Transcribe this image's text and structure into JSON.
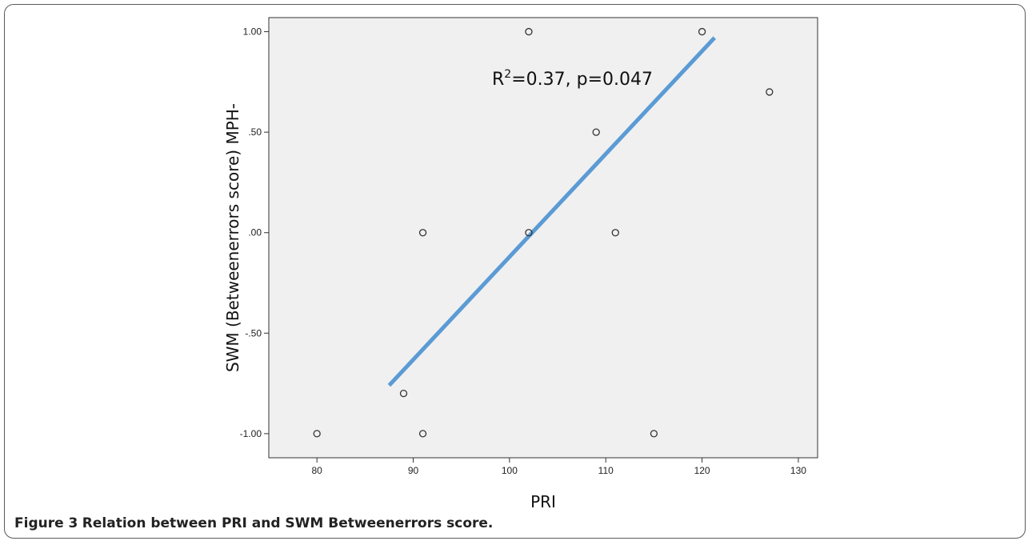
{
  "figure": {
    "caption_label": "Figure 3",
    "caption_text": "Relation between PRI and SWM Betweenerrors score."
  },
  "chart_data": {
    "type": "scatter",
    "xlabel": "PRI",
    "ylabel": "SWM (Betweenerrors score) MPH-",
    "xlim": [
      75,
      132
    ],
    "ylim": [
      -1.12,
      1.07
    ],
    "x_ticks": [
      80,
      90,
      100,
      110,
      120,
      130
    ],
    "y_ticks": [
      1.0,
      0.5,
      0.0,
      -0.5,
      -1.0
    ],
    "x_tick_labels": [
      "80",
      "90",
      "100",
      "110",
      "120",
      "130"
    ],
    "y_tick_labels": [
      "1.00",
      ".50",
      ".00",
      "-.50",
      "-1.00"
    ],
    "points": [
      {
        "x": 80,
        "y": -1.0
      },
      {
        "x": 89,
        "y": -0.8
      },
      {
        "x": 91,
        "y": 0.0
      },
      {
        "x": 91,
        "y": -1.0
      },
      {
        "x": 102,
        "y": 1.0
      },
      {
        "x": 102,
        "y": 0.0
      },
      {
        "x": 109,
        "y": 0.5
      },
      {
        "x": 111,
        "y": 0.0
      },
      {
        "x": 115,
        "y": -1.0
      },
      {
        "x": 120,
        "y": 1.0
      },
      {
        "x": 127,
        "y": 0.7
      }
    ],
    "fit_line": {
      "x1": 87.5,
      "y1": -0.76,
      "x2": 121.3,
      "y2": 0.97
    },
    "annotation": {
      "prefix": "R",
      "sup": "2",
      "text": "=0.37, p=0.047"
    },
    "grid": false,
    "colors": {
      "plot_background": "#f0f0f0",
      "fit_line": "#5b9bd5",
      "marker_stroke": "#333333"
    }
  }
}
